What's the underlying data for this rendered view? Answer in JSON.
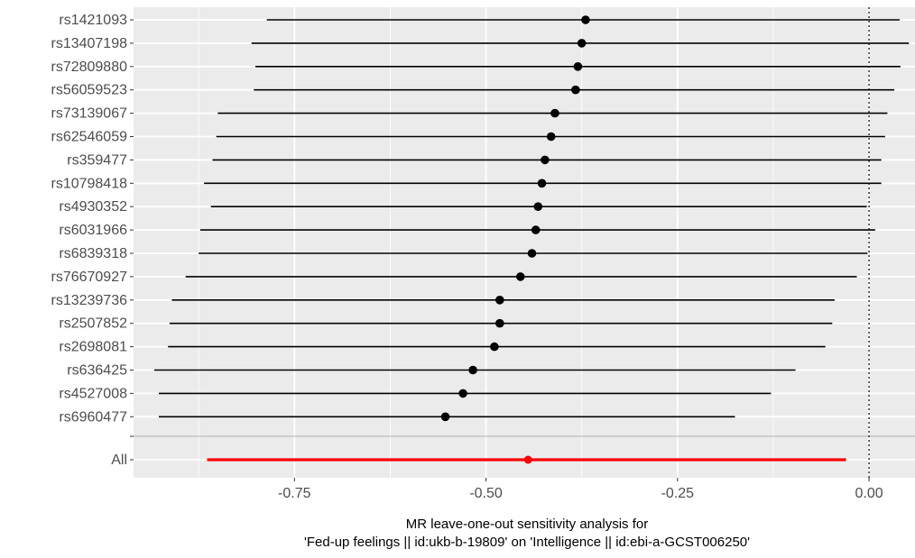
{
  "chart_data": {
    "type": "forest",
    "xlabel_line1": "MR leave-one-out sensitivity analysis for",
    "xlabel_line2": "'Fed-up feelings || id:ukb-b-19809' on 'Intelligence || id:ebi-a-GCST006250'",
    "xlim": [
      -0.96,
      0.06
    ],
    "x_ticks": [
      -0.75,
      -0.5,
      -0.25,
      0.0
    ],
    "x_tick_labels": [
      "-0.75",
      "-0.50",
      "-0.25",
      "0.00"
    ],
    "reference_line": 0.0,
    "grid": true,
    "snps": [
      {
        "label": "rs1421093",
        "estimate": -0.37,
        "lower": -0.786,
        "upper": 0.04
      },
      {
        "label": "rs13407198",
        "estimate": -0.375,
        "lower": -0.806,
        "upper": 0.052
      },
      {
        "label": "rs72809880",
        "estimate": -0.38,
        "lower": -0.801,
        "upper": 0.041
      },
      {
        "label": "rs56059523",
        "estimate": -0.383,
        "lower": -0.803,
        "upper": 0.033
      },
      {
        "label": "rs73139067",
        "estimate": -0.41,
        "lower": -0.85,
        "upper": 0.024
      },
      {
        "label": "rs62546059",
        "estimate": -0.415,
        "lower": -0.852,
        "upper": 0.021
      },
      {
        "label": "rs359477",
        "estimate": -0.423,
        "lower": -0.857,
        "upper": 0.016
      },
      {
        "label": "rs10798418",
        "estimate": -0.427,
        "lower": -0.868,
        "upper": 0.016
      },
      {
        "label": "rs4930352",
        "estimate": -0.432,
        "lower": -0.859,
        "upper": -0.003
      },
      {
        "label": "rs6031966",
        "estimate": -0.435,
        "lower": -0.873,
        "upper": 0.008
      },
      {
        "label": "rs6839318",
        "estimate": -0.44,
        "lower": -0.875,
        "upper": -0.002
      },
      {
        "label": "rs76670927",
        "estimate": -0.455,
        "lower": -0.892,
        "upper": -0.016
      },
      {
        "label": "rs13239736",
        "estimate": -0.482,
        "lower": -0.91,
        "upper": -0.045
      },
      {
        "label": "rs2507852",
        "estimate": -0.482,
        "lower": -0.913,
        "upper": -0.048
      },
      {
        "label": "rs2698081",
        "estimate": -0.489,
        "lower": -0.915,
        "upper": -0.057
      },
      {
        "label": "rs636425",
        "estimate": -0.517,
        "lower": -0.933,
        "upper": -0.096
      },
      {
        "label": "rs4527008",
        "estimate": -0.53,
        "lower": -0.927,
        "upper": -0.128
      },
      {
        "label": "rs6960477",
        "estimate": -0.553,
        "lower": -0.927,
        "upper": -0.175
      }
    ],
    "all": {
      "label": "All",
      "estimate": -0.445,
      "lower": -0.864,
      "upper": -0.03
    },
    "colors": {
      "panel_background": "#ebebeb",
      "grid": "#ffffff",
      "snp_marks": "#000000",
      "all_marks": "#ff0000",
      "separator": "#bdbdbd"
    }
  }
}
